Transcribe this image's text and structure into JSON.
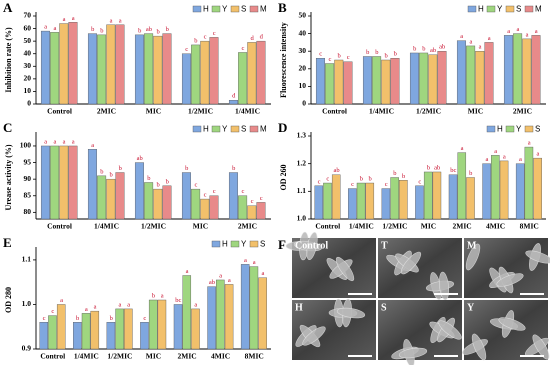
{
  "chart_data": [
    {
      "type": "bar",
      "panel": "A",
      "ylabel": "Inhibition rate (%)",
      "categories": [
        "Control",
        "2MIC",
        "MIC",
        "1/2MIC",
        "1/4MIC"
      ],
      "ylim": [
        0,
        70
      ],
      "yticks": [
        0,
        10,
        20,
        30,
        40,
        50,
        60,
        70
      ],
      "legend": "top-right",
      "series": [
        {
          "name": "H",
          "color": "#7fa7df",
          "values": [
            58,
            56,
            55,
            40,
            3
          ],
          "letters": [
            "a",
            "b",
            "b",
            "c",
            "d"
          ]
        },
        {
          "name": "Y",
          "color": "#9fd67f",
          "values": [
            57,
            55,
            56,
            47,
            41
          ],
          "letters": [
            "a",
            "b",
            "ab",
            "b",
            "c"
          ]
        },
        {
          "name": "S",
          "color": "#f2c06b",
          "values": [
            64,
            63,
            54,
            50,
            49
          ],
          "letters": [
            "a",
            "a",
            "b",
            "c",
            "d"
          ]
        },
        {
          "name": "M",
          "color": "#e88a8a",
          "values": [
            65,
            63,
            56,
            53,
            50
          ],
          "letters": [
            "a",
            "a",
            "b",
            "c",
            "d"
          ]
        }
      ]
    },
    {
      "type": "bar",
      "panel": "B",
      "ylabel": "Fluorescence intensity",
      "categories": [
        "Control",
        "1/4MIC",
        "1/2MIC",
        "MIC",
        "2MIC"
      ],
      "ylim": [
        0,
        50
      ],
      "yticks": [
        0,
        10,
        20,
        30,
        40,
        50
      ],
      "legend": "top-right",
      "series": [
        {
          "name": "H",
          "color": "#7fa7df",
          "values": [
            26,
            27,
            29,
            36,
            39
          ],
          "letters": [
            "c",
            "b",
            "b",
            "a",
            "a"
          ]
        },
        {
          "name": "Y",
          "color": "#9fd67f",
          "values": [
            23,
            27,
            29,
            33,
            40
          ],
          "letters": [
            "c",
            "b",
            "b",
            "a",
            "a"
          ]
        },
        {
          "name": "S",
          "color": "#f2c06b",
          "values": [
            25,
            25,
            28,
            30,
            37
          ],
          "letters": [
            "b",
            "b",
            "ab",
            "a",
            "a"
          ]
        },
        {
          "name": "M",
          "color": "#e88a8a",
          "values": [
            24,
            26,
            30,
            35,
            39
          ],
          "letters": [
            "c",
            "b",
            "ab",
            "a",
            "a"
          ]
        }
      ]
    },
    {
      "type": "bar",
      "panel": "C",
      "ylabel": "Urease activity (%)",
      "categories": [
        "Control",
        "1/4MIC",
        "1/2MIC",
        "MIC",
        "2MIC"
      ],
      "ylim": [
        78,
        103
      ],
      "yticks": [
        80,
        85,
        90,
        95,
        100
      ],
      "legend": "top-right",
      "series": [
        {
          "name": "H",
          "color": "#7fa7df",
          "values": [
            100,
            99,
            95,
            92,
            92
          ],
          "letters": [
            "a",
            "a",
            "ab",
            "b",
            "b"
          ]
        },
        {
          "name": "Y",
          "color": "#9fd67f",
          "values": [
            100,
            91,
            89,
            87,
            85
          ],
          "letters": [
            "a",
            "b",
            "b",
            "c",
            "c"
          ]
        },
        {
          "name": "S",
          "color": "#f2c06b",
          "values": [
            100,
            90,
            87,
            84,
            82
          ],
          "letters": [
            "a",
            "b",
            "b",
            "c",
            "c"
          ]
        },
        {
          "name": "M",
          "color": "#e88a8a",
          "values": [
            100,
            92,
            88,
            85,
            83
          ],
          "letters": [
            "a",
            "b",
            "b",
            "c",
            "c"
          ]
        }
      ]
    },
    {
      "type": "bar",
      "panel": "D",
      "ylabel": "OD 260",
      "categories": [
        "Control",
        "1/4MIC",
        "1/2MIC",
        "MIC",
        "2MIC",
        "4MIC",
        "8MIC"
      ],
      "ylim": [
        1.0,
        1.3
      ],
      "yticks": [
        {
          "value": 1,
          "label": "1.0"
        },
        1.1,
        1.2,
        1.3
      ],
      "legend": "top-right",
      "series": [
        {
          "name": "H",
          "color": "#7fa7df",
          "values": [
            1.12,
            1.11,
            1.11,
            1.12,
            1.16,
            1.2,
            1.2
          ],
          "letters": [
            "c",
            "c",
            "c",
            "c",
            "bc",
            "a",
            "a"
          ]
        },
        {
          "name": "Y",
          "color": "#9fd67f",
          "values": [
            1.13,
            1.13,
            1.15,
            1.17,
            1.24,
            1.23,
            1.26
          ],
          "letters": [
            "c",
            "b",
            "b",
            "b",
            "a",
            "a",
            "a"
          ]
        },
        {
          "name": "S",
          "color": "#f2c06b",
          "values": [
            1.16,
            1.13,
            1.14,
            1.17,
            1.15,
            1.21,
            1.22
          ],
          "letters": [
            "ab",
            "b",
            "b",
            "ab",
            "b",
            "a",
            "a"
          ]
        }
      ]
    },
    {
      "type": "bar",
      "panel": "E",
      "ylabel": "OD 280",
      "categories": [
        "Control",
        "1/4MIC",
        "1/2MIC",
        "MIC",
        "2MIC",
        "4MIC",
        "8MIC"
      ],
      "ylim": [
        0.9,
        1.12
      ],
      "yticks": [
        0.9,
        {
          "value": 1,
          "label": "1.0"
        },
        1.1
      ],
      "legend": "top-right",
      "series": [
        {
          "name": "H",
          "color": "#7fa7df",
          "values": [
            0.96,
            0.96,
            0.96,
            0.96,
            1.0,
            1.04,
            1.09
          ],
          "letters": [
            "c",
            "b",
            "b",
            "c",
            "bc",
            "ab",
            "a"
          ]
        },
        {
          "name": "Y",
          "color": "#9fd67f",
          "values": [
            0.975,
            0.98,
            0.99,
            1.01,
            1.065,
            1.055,
            1.085
          ],
          "letters": [
            "c",
            "a",
            "a",
            "b",
            "a",
            "a",
            "a"
          ]
        },
        {
          "name": "S",
          "color": "#f2c06b",
          "values": [
            1.0,
            0.985,
            0.99,
            1.01,
            0.99,
            1.045,
            1.06
          ],
          "letters": [
            "a",
            "a",
            "a",
            "a",
            "a",
            "a",
            "a"
          ]
        }
      ]
    }
  ],
  "micrographs": {
    "panel": "F",
    "labels": [
      "Control",
      "T",
      "M",
      "H",
      "S",
      "Y"
    ]
  }
}
